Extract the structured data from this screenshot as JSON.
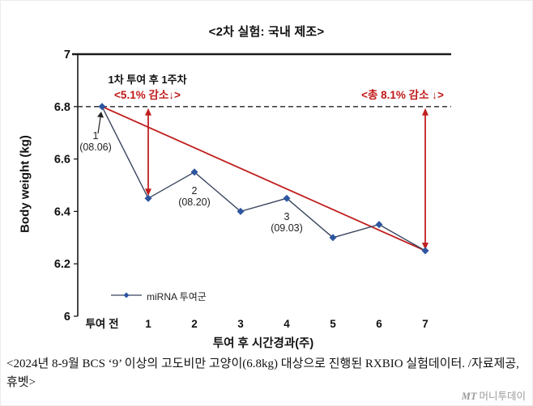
{
  "title": "<2차 실험: 국내 제조>",
  "chart_data": {
    "type": "line",
    "title": "<2차 실험: 국내 제조>",
    "x_categories": [
      "투여 전",
      "1",
      "2",
      "3",
      "4",
      "5",
      "6",
      "7"
    ],
    "series": [
      {
        "name": "miRNA 투여군",
        "values": [
          6.8,
          6.45,
          6.55,
          6.4,
          6.45,
          6.3,
          6.35,
          6.25
        ]
      }
    ],
    "xlabel": "투여 후 시간경과(주)",
    "ylabel": "Body weight (kg)",
    "ylim": [
      6,
      7
    ],
    "y_ticks": [
      7,
      6.8,
      6.6,
      6.4,
      6.2,
      6
    ],
    "grid": false,
    "baseline_value": 6.8,
    "trend_line": {
      "from": [
        0,
        6.8
      ],
      "to": [
        7,
        6.25
      ]
    },
    "point_labels": [
      {
        "index": 0,
        "line1": "1",
        "line2": "(08.06)"
      },
      {
        "index": 2,
        "line1": "2",
        "line2": "(08.20)"
      },
      {
        "index": 4,
        "line1": "3",
        "line2": "(09.03)"
      }
    ],
    "annotations": {
      "week1_note": "1차 투여 후 1주차",
      "drop1": "<5.1% 감소↓>",
      "drop_total": "<총 8.1% 감소 ↓>"
    },
    "legend": {
      "label": "miRNA 투여군",
      "position": "lower-left"
    },
    "colors": {
      "series_line": "#39455f",
      "marker": "#2d56a0",
      "trend_line": "#c0201f",
      "arrow": "#c0201f",
      "annotation_red": "#c01818",
      "baseline_dash": "#222222",
      "axis": "#1a1a1a"
    }
  },
  "caption": "<2024년 8-9월 BCS ‘9’ 이상의 고도비만 고양이(6.8kg) 대상으로 진행된 RXBIO 실험데이터. /자료제공, 휴벳>",
  "watermark": {
    "logo": "MT",
    "text": "머니투데이"
  }
}
